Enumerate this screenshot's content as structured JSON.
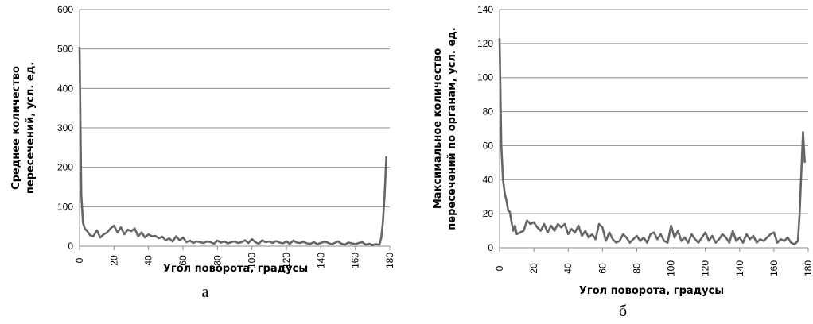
{
  "chart_data": [
    {
      "type": "line",
      "caption": "а",
      "xlabel": "Угол поворота, градусы",
      "ylabel_lines": [
        "Среднее количество",
        "пересечений,  усл. ед."
      ],
      "xlim": [
        0,
        180
      ],
      "ylim": [
        0,
        600
      ],
      "xticks": [
        0,
        20,
        40,
        60,
        80,
        100,
        120,
        140,
        160,
        180
      ],
      "yticks": [
        0,
        100,
        200,
        300,
        400,
        500,
        600
      ],
      "grid": true,
      "line_color": "#666666",
      "x": [
        0,
        1,
        2,
        3,
        4,
        5,
        6,
        8,
        10,
        12,
        14,
        16,
        18,
        20,
        22,
        24,
        26,
        28,
        30,
        32,
        34,
        36,
        38,
        40,
        42,
        44,
        46,
        48,
        50,
        52,
        54,
        56,
        58,
        60,
        62,
        64,
        66,
        68,
        70,
        72,
        74,
        76,
        78,
        80,
        82,
        84,
        86,
        88,
        90,
        92,
        94,
        96,
        98,
        100,
        102,
        104,
        106,
        108,
        110,
        112,
        114,
        116,
        118,
        120,
        122,
        124,
        126,
        128,
        130,
        132,
        134,
        136,
        138,
        140,
        142,
        144,
        146,
        148,
        150,
        152,
        154,
        156,
        158,
        160,
        162,
        164,
        166,
        168,
        170,
        172,
        174,
        175,
        176,
        177,
        178
      ],
      "values": [
        505,
        130,
        60,
        45,
        40,
        35,
        28,
        25,
        40,
        22,
        30,
        35,
        45,
        52,
        35,
        48,
        30,
        42,
        38,
        45,
        25,
        35,
        22,
        30,
        25,
        26,
        20,
        24,
        15,
        20,
        12,
        25,
        15,
        22,
        10,
        14,
        8,
        12,
        10,
        8,
        12,
        10,
        6,
        14,
        9,
        12,
        7,
        10,
        12,
        8,
        10,
        15,
        8,
        18,
        10,
        6,
        15,
        10,
        12,
        8,
        13,
        9,
        7,
        12,
        6,
        14,
        9,
        8,
        11,
        7,
        6,
        10,
        5,
        8,
        11,
        9,
        5,
        8,
        12,
        6,
        4,
        9,
        7,
        5,
        8,
        10,
        4,
        6,
        3,
        5,
        4,
        20,
        60,
        130,
        228
      ]
    },
    {
      "type": "line",
      "caption": "б",
      "xlabel": "Угол поворота, градусы",
      "ylabel_lines": [
        "Максимальное количество",
        "пересечений по органам, усл. ед."
      ],
      "xlim": [
        0,
        180
      ],
      "ylim": [
        0,
        140
      ],
      "xticks": [
        0,
        20,
        40,
        60,
        80,
        100,
        120,
        140,
        160,
        180
      ],
      "yticks": [
        0,
        20,
        40,
        60,
        80,
        100,
        120,
        140
      ],
      "grid": true,
      "line_color": "#666666",
      "x": [
        0,
        1,
        2,
        3,
        4,
        5,
        6,
        7,
        8,
        9,
        10,
        12,
        14,
        16,
        18,
        20,
        22,
        24,
        26,
        28,
        30,
        32,
        34,
        36,
        38,
        40,
        42,
        44,
        46,
        48,
        50,
        52,
        54,
        56,
        58,
        60,
        62,
        64,
        66,
        68,
        70,
        72,
        74,
        76,
        78,
        80,
        82,
        84,
        86,
        88,
        90,
        92,
        94,
        96,
        98,
        100,
        102,
        104,
        106,
        108,
        110,
        112,
        114,
        116,
        118,
        120,
        122,
        124,
        126,
        128,
        130,
        132,
        134,
        136,
        138,
        140,
        142,
        144,
        146,
        148,
        150,
        152,
        154,
        156,
        158,
        160,
        162,
        164,
        166,
        168,
        170,
        172,
        174,
        175,
        176,
        177,
        178
      ],
      "values": [
        123,
        60,
        40,
        32,
        28,
        22,
        21,
        15,
        10,
        13,
        8,
        9,
        10,
        16,
        14,
        15,
        12,
        10,
        14,
        9,
        13,
        10,
        14,
        12,
        14,
        8,
        11,
        9,
        13,
        7,
        10,
        6,
        8,
        5,
        14,
        12,
        4,
        9,
        5,
        3,
        4,
        8,
        6,
        3,
        5,
        7,
        4,
        6,
        3,
        8,
        9,
        5,
        8,
        4,
        3,
        13,
        6,
        10,
        4,
        6,
        3,
        8,
        5,
        3,
        6,
        9,
        4,
        7,
        3,
        5,
        8,
        6,
        3,
        10,
        4,
        6,
        3,
        8,
        5,
        7,
        3,
        5,
        4,
        6,
        8,
        9,
        3,
        5,
        4,
        6,
        3,
        2,
        4,
        20,
        45,
        68,
        50
      ]
    }
  ]
}
